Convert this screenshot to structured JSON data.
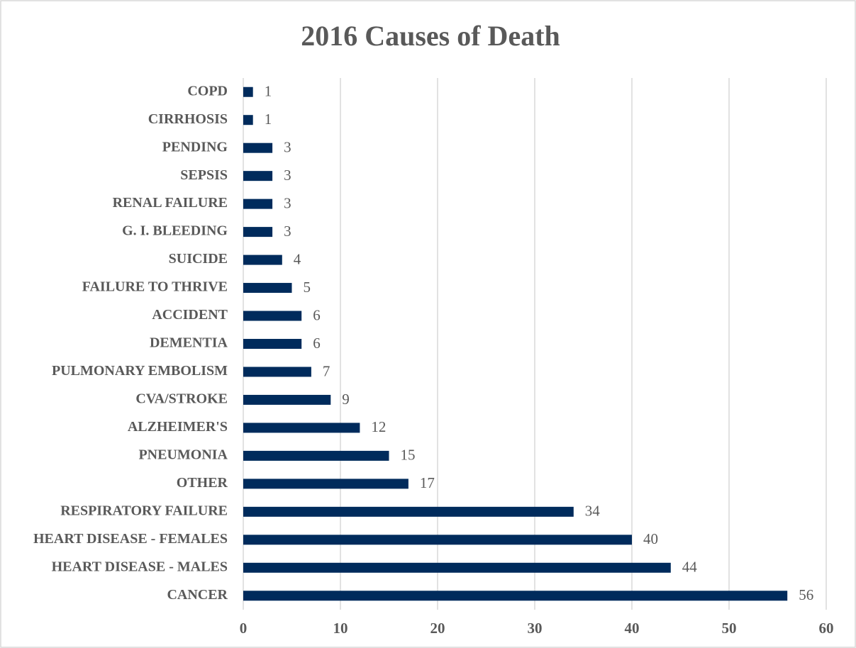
{
  "chart_data": {
    "type": "bar",
    "orientation": "horizontal",
    "title": "2016 Causes of Death",
    "categories": [
      "COPD",
      "CIRRHOSIS",
      "PENDING",
      "SEPSIS",
      "RENAL FAILURE",
      "G. I. BLEEDING",
      "SUICIDE",
      "FAILURE TO THRIVE",
      "ACCIDENT",
      "DEMENTIA",
      "PULMONARY EMBOLISM",
      "CVA/STROKE",
      "ALZHEIMER'S",
      "PNEUMONIA",
      "OTHER",
      "RESPIRATORY FAILURE",
      "HEART DISEASE - FEMALES",
      "HEART DISEASE - MALES",
      "CANCER"
    ],
    "values": [
      1,
      1,
      3,
      3,
      3,
      3,
      4,
      5,
      6,
      6,
      7,
      9,
      12,
      15,
      17,
      34,
      40,
      44,
      56
    ],
    "color": "#002b5c",
    "xlim": [
      0,
      60
    ],
    "xticks": [
      0,
      10,
      20,
      30,
      40,
      50,
      60
    ],
    "grid": true
  }
}
